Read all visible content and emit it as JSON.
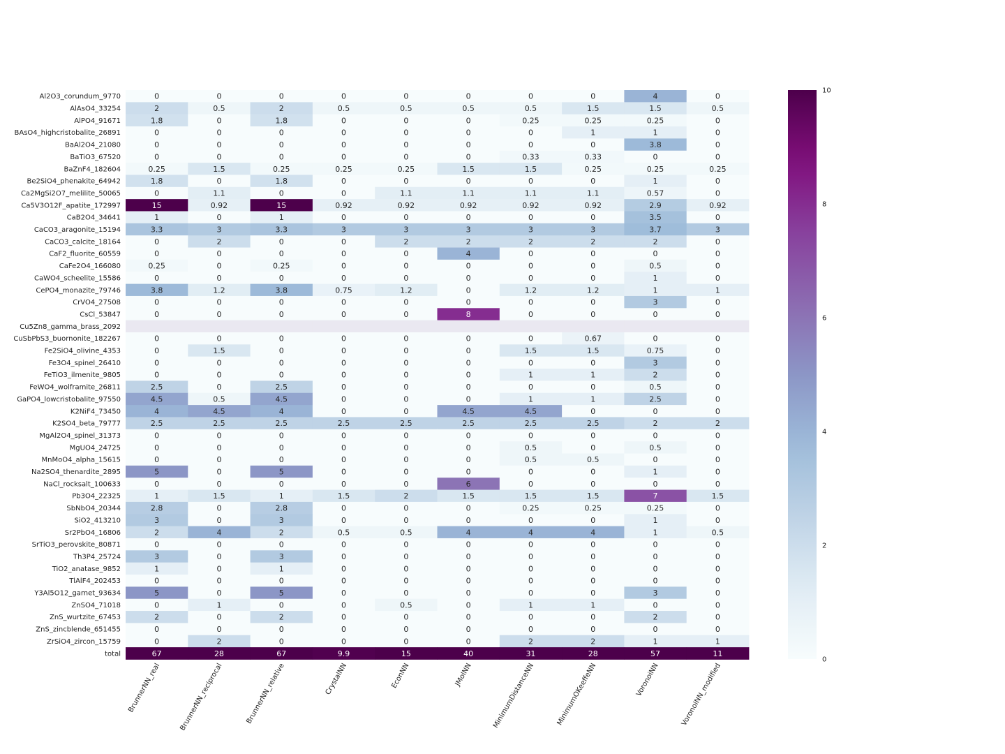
{
  "chart_data": {
    "type": "heatmap",
    "title": "",
    "xlabel": "",
    "ylabel": "",
    "columns": [
      "BrunnerNN_real",
      "BrunnerNN_reciprocal",
      "BrunnerNN_relative",
      "CrystalNN",
      "EconNN",
      "JMolNN",
      "MinimumDistanceNN",
      "MinimumOKeeffeNN",
      "VoronoiNN",
      "VoronoiNN_modified"
    ],
    "rows": [
      "Al2O3_corundum_9770",
      "AlAsO4_33254",
      "AlPO4_91671",
      "BAsO4_highcristobalite_26891",
      "BaAl2O4_21080",
      "BaTiO3_67520",
      "BaZnF4_182604",
      "Be2SiO4_phenakite_64942",
      "Ca2MgSi2O7_melilite_50065",
      "Ca5V3O12F_apatite_172997",
      "CaB2O4_34641",
      "CaCO3_aragonite_15194",
      "CaCO3_calcite_18164",
      "CaF2_fluorite_60559",
      "CaFe2O4_166080",
      "CaWO4_scheelite_15586",
      "CePO4_monazite_79746",
      "CrVO4_27508",
      "CsCl_53847",
      "Cu5Zn8_gamma_brass_2092",
      "CuSbPbS3_buornonite_182267",
      "Fe2SiO4_olivine_4353",
      "Fe3O4_spinel_26410",
      "FeTiO3_ilmenite_9805",
      "FeWO4_wolframite_26811",
      "GaPO4_lowcristobalite_97550",
      "K2NiF4_73450",
      "K2SO4_beta_79777",
      "MgAl2O4_spinel_31373",
      "MgUO4_24725",
      "MnMoO4_alpha_15615",
      "Na2SO4_thenardite_2895",
      "NaCl_rocksalt_100633",
      "Pb3O4_22325",
      "SbNbO4_20344",
      "SiO2_413210",
      "Sr2PbO4_16806",
      "SrTiO3_perovskite_80871",
      "Th3P4_25724",
      "TiO2_anatase_9852",
      "TlAlF4_202453",
      "Y3Al5O12_garnet_93634",
      "ZnSO4_71018",
      "ZnS_wurtzite_67453",
      "ZnS_zincblende_651455",
      "ZrSiO4_zircon_15759",
      "total"
    ],
    "values": [
      [
        0,
        0,
        0,
        0,
        0,
        0,
        0,
        0,
        4,
        0
      ],
      [
        2,
        0.5,
        2,
        0.5,
        0.5,
        0.5,
        0.5,
        1.5,
        1.5,
        0.5
      ],
      [
        1.8,
        0,
        1.8,
        0,
        0,
        0,
        0.25,
        0.25,
        0.25,
        0
      ],
      [
        0,
        0,
        0,
        0,
        0,
        0,
        0,
        1,
        1,
        0
      ],
      [
        0,
        0,
        0,
        0,
        0,
        0,
        0,
        0,
        3.8,
        0
      ],
      [
        0,
        0,
        0,
        0,
        0,
        0,
        0.33,
        0.33,
        0,
        0
      ],
      [
        0.25,
        1.5,
        0.25,
        0.25,
        0.25,
        1.5,
        1.5,
        0.25,
        0.25,
        0.25
      ],
      [
        1.8,
        0,
        1.8,
        0,
        0,
        0,
        0,
        0,
        1,
        0
      ],
      [
        0,
        1.1,
        0,
        0,
        1.1,
        1.1,
        1.1,
        1.1,
        0.57,
        0
      ],
      [
        15,
        0.92,
        15,
        0.92,
        0.92,
        0.92,
        0.92,
        0.92,
        2.9,
        0.92
      ],
      [
        1,
        0,
        1,
        0,
        0,
        0,
        0,
        0,
        3.5,
        0
      ],
      [
        3.3,
        3,
        3.3,
        3,
        3,
        3,
        3,
        3,
        3.7,
        3
      ],
      [
        0,
        2,
        0,
        0,
        2,
        2,
        2,
        2,
        2,
        0
      ],
      [
        0,
        0,
        0,
        0,
        0,
        4,
        0,
        0,
        0,
        0
      ],
      [
        0.25,
        0,
        0.25,
        0,
        0,
        0,
        0,
        0,
        0.5,
        0
      ],
      [
        0,
        0,
        0,
        0,
        0,
        0,
        0,
        0,
        1,
        0
      ],
      [
        3.8,
        1.2,
        3.8,
        0.75,
        1.2,
        0,
        1.2,
        1.2,
        1,
        1
      ],
      [
        0,
        0,
        0,
        0,
        0,
        0,
        0,
        0,
        3,
        0
      ],
      [
        0,
        0,
        0,
        0,
        0,
        8,
        0,
        0,
        0,
        0
      ],
      [
        null,
        null,
        null,
        null,
        null,
        null,
        null,
        null,
        null,
        null
      ],
      [
        0,
        0,
        0,
        0,
        0,
        0,
        0,
        0.67,
        0,
        0
      ],
      [
        0,
        1.5,
        0,
        0,
        0,
        0,
        1.5,
        1.5,
        0.75,
        0
      ],
      [
        0,
        0,
        0,
        0,
        0,
        0,
        0,
        0,
        3,
        0
      ],
      [
        0,
        0,
        0,
        0,
        0,
        0,
        1,
        1,
        2,
        0
      ],
      [
        2.5,
        0,
        2.5,
        0,
        0,
        0,
        0,
        0,
        0.5,
        0
      ],
      [
        4.5,
        0.5,
        4.5,
        0,
        0,
        0,
        1,
        1,
        2.5,
        0
      ],
      [
        4,
        4.5,
        4,
        0,
        0,
        4.5,
        4.5,
        0,
        0,
        0
      ],
      [
        2.5,
        2.5,
        2.5,
        2.5,
        2.5,
        2.5,
        2.5,
        2.5,
        2,
        2
      ],
      [
        0,
        0,
        0,
        0,
        0,
        0,
        0,
        0,
        0,
        0
      ],
      [
        0,
        0,
        0,
        0,
        0,
        0,
        0.5,
        0,
        0.5,
        0
      ],
      [
        0,
        0,
        0,
        0,
        0,
        0,
        0.5,
        0.5,
        0,
        0
      ],
      [
        5,
        0,
        5,
        0,
        0,
        0,
        0,
        0,
        1,
        0
      ],
      [
        0,
        0,
        0,
        0,
        0,
        6,
        0,
        0,
        0,
        0
      ],
      [
        1,
        1.5,
        1,
        1.5,
        2,
        1.5,
        1.5,
        1.5,
        7,
        1.5
      ],
      [
        2.8,
        0,
        2.8,
        0,
        0,
        0,
        0.25,
        0.25,
        0.25,
        0
      ],
      [
        3,
        0,
        3,
        0,
        0,
        0,
        0,
        0,
        1,
        0
      ],
      [
        2,
        4,
        2,
        0.5,
        0.5,
        4,
        4,
        4,
        1,
        0.5
      ],
      [
        0,
        0,
        0,
        0,
        0,
        0,
        0,
        0,
        0,
        0
      ],
      [
        3,
        0,
        3,
        0,
        0,
        0,
        0,
        0,
        0,
        0
      ],
      [
        1,
        0,
        1,
        0,
        0,
        0,
        0,
        0,
        0,
        0
      ],
      [
        0,
        0,
        0,
        0,
        0,
        0,
        0,
        0,
        0,
        0
      ],
      [
        5,
        0,
        5,
        0,
        0,
        0,
        0,
        0,
        3,
        0
      ],
      [
        0,
        1,
        0,
        0,
        0.5,
        0,
        1,
        1,
        0,
        0
      ],
      [
        2,
        0,
        2,
        0,
        0,
        0,
        0,
        0,
        2,
        0
      ],
      [
        0,
        0,
        0,
        0,
        0,
        0,
        0,
        0,
        0,
        0
      ],
      [
        0,
        2,
        0,
        0,
        0,
        0,
        2,
        2,
        1,
        1
      ],
      [
        67,
        28,
        67,
        9.9,
        15,
        40,
        31,
        28,
        57,
        11
      ]
    ],
    "colorbar": {
      "min": 0,
      "max": 10,
      "ticks": [
        0,
        2,
        4,
        6,
        8,
        10
      ],
      "colormap": "BuPu"
    },
    "missing_color": "#eae8f1"
  }
}
